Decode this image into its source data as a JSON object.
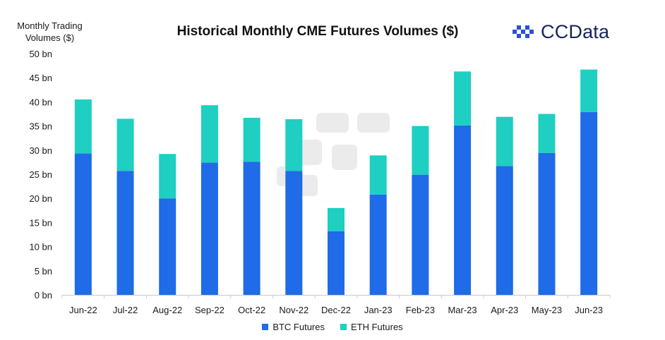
{
  "title": "Historical Monthly CME Futures Volumes ($)",
  "y_axis_title_line1": "Monthly Trading",
  "y_axis_title_line2": "Volumes ($)",
  "brand": "CCData",
  "colors": {
    "btc": "#1f6be8",
    "eth": "#1ecfc2",
    "axis": "#c8c8c8",
    "watermark": "#e4e4e4"
  },
  "chart_data": {
    "type": "bar",
    "stacked": true,
    "title": "Historical Monthly CME Futures Volumes ($)",
    "ylabel": "Monthly Trading Volumes ($)",
    "xlabel": "",
    "categories": [
      "Jun-22",
      "Jul-22",
      "Aug-22",
      "Sep-22",
      "Oct-22",
      "Nov-22",
      "Dec-22",
      "Jan-23",
      "Feb-23",
      "Mar-23",
      "Apr-23",
      "May-23",
      "Jun-23"
    ],
    "series": [
      {
        "name": "BTC Futures",
        "values": [
          29.3,
          25.7,
          20.0,
          27.4,
          27.6,
          25.7,
          13.2,
          20.8,
          24.9,
          35.1,
          26.7,
          29.4,
          37.9
        ]
      },
      {
        "name": "ETH Futures",
        "values": [
          11.2,
          10.8,
          9.2,
          11.9,
          9.1,
          10.7,
          4.8,
          8.1,
          10.1,
          11.2,
          10.2,
          8.1,
          8.8
        ]
      }
    ],
    "ylim": [
      0,
      50
    ],
    "yticks": [
      "0 bn",
      "5 bn",
      "10 bn",
      "15 bn",
      "20 bn",
      "25 bn",
      "30 bn",
      "35 bn",
      "40 bn",
      "45 bn",
      "50 bn"
    ],
    "grid": false,
    "legend_position": "bottom"
  }
}
